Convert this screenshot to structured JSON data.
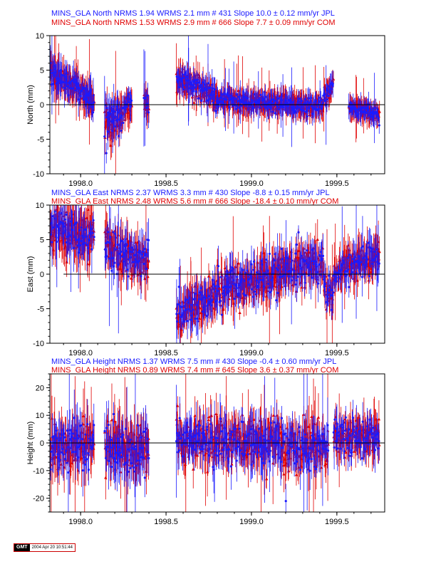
{
  "colors": {
    "jpl": "#1a1aff",
    "com": "#e00000",
    "axis": "#000000"
  },
  "chart_data": [
    {
      "type": "scatter",
      "ylabel": "North (mm)",
      "xlim": [
        1997.82,
        1999.78
      ],
      "ylim": [
        -10,
        10
      ],
      "x_ticks": [
        1998.0,
        1998.5,
        1999.0,
        1999.5
      ],
      "x_tick_labels": [
        "1998.0",
        "1998.5",
        "1999.0",
        "1999.5"
      ],
      "y_ticks": [
        -10,
        -5,
        0,
        5,
        10
      ],
      "y_tick_labels": [
        "-10",
        "-5",
        "0",
        "5",
        "10"
      ],
      "legend_lines": [
        {
          "color": "blue",
          "text": "MINS_GLA North NRMS 1.94 WRMS  2.1 mm # 431 Slope   10.0 ±  0.12 mm/yr JPL"
        },
        {
          "color": "red",
          "text": "MINS_GLA North NRMS 1.53 WRMS  2.9 mm # 666 Slope    7.7 ±  0.09 mm/yr COM"
        }
      ],
      "series": [
        {
          "legend": "JPL",
          "color": "blue",
          "marker": "circle",
          "count": 431,
          "nrms": 1.94,
          "wrms_mm": 2.1,
          "slope_mm_yr": 10.0,
          "slope_sigma_mm_yr": 0.12
        },
        {
          "legend": "COM",
          "color": "red",
          "marker": "triangle",
          "count": 666,
          "nrms": 1.53,
          "wrms_mm": 2.9,
          "slope_mm_yr": 7.7,
          "slope_sigma_mm_yr": 0.09
        }
      ],
      "shape": {
        "segments": [
          {
            "t": [
              1997.82,
              1998.08
            ],
            "v": [
              5,
              0.5
            ],
            "noise": 1.3,
            "err": 2.2
          },
          {
            "t": [
              1998.14,
              1998.24
            ],
            "v": [
              -3,
              -1
            ],
            "noise": 2.8,
            "err": 2.6
          },
          {
            "t": [
              1998.24,
              1998.3
            ],
            "v": [
              -1,
              0
            ],
            "noise": 1.4,
            "err": 2.0
          },
          {
            "t": [
              1998.37,
              1998.4
            ],
            "v": [
              1,
              0
            ],
            "noise": 1.2,
            "err": 2.0
          },
          {
            "t": [
              1998.56,
              1998.8
            ],
            "v": [
              4,
              1
            ],
            "noise": 1.2,
            "err": 1.8
          },
          {
            "t": [
              1998.8,
              1999.42
            ],
            "v": [
              0.8,
              -0.4
            ],
            "noise": 1.0,
            "err": 1.6
          },
          {
            "t": [
              1999.42,
              1999.48
            ],
            "v": [
              1,
              3
            ],
            "noise": 1.0,
            "err": 1.6
          },
          {
            "t": [
              1999.57,
              1999.75
            ],
            "v": [
              -0.3,
              -1.5
            ],
            "noise": 0.8,
            "err": 1.5
          }
        ],
        "zero_line": [
          1997.82,
          1999.78
        ]
      }
    },
    {
      "type": "scatter",
      "ylabel": "East (mm)",
      "xlim": [
        1997.82,
        1999.78
      ],
      "ylim": [
        -10,
        10
      ],
      "x_ticks": [
        1998.0,
        1998.5,
        1999.0,
        1999.5
      ],
      "x_tick_labels": [
        "1998.0",
        "1998.5",
        "1999.0",
        "1999.5"
      ],
      "y_ticks": [
        -10,
        -5,
        0,
        5,
        10
      ],
      "y_tick_labels": [
        "-10",
        "-5",
        "0",
        "5",
        "10"
      ],
      "legend_lines": [
        {
          "color": "blue",
          "text": "MINS_GLA East NRMS 2.37 WRMS  3.3 mm # 430 Slope   -8.8 ±  0.15 mm/yr JPL"
        },
        {
          "color": "red",
          "text": "MINS_GLA East NRMS 2.48 WRMS  5.6 mm # 666 Slope  -18.4 ±  0.10 mm/yr COM"
        }
      ],
      "series": [
        {
          "legend": "JPL",
          "color": "blue",
          "marker": "circle",
          "count": 430,
          "nrms": 2.37,
          "wrms_mm": 3.3,
          "slope_mm_yr": -8.8,
          "slope_sigma_mm_yr": 0.15
        },
        {
          "legend": "COM",
          "color": "red",
          "marker": "triangle",
          "count": 666,
          "nrms": 2.48,
          "wrms_mm": 5.6,
          "slope_mm_yr": -18.4,
          "slope_sigma_mm_yr": 0.1
        }
      ],
      "shape": {
        "segments": [
          {
            "t": [
              1997.82,
              1998.08
            ],
            "v": [
              7,
              5
            ],
            "noise": 2.5,
            "err": 3.0
          },
          {
            "t": [
              1998.14,
              1998.4
            ],
            "v": [
              4,
              2
            ],
            "noise": 2.2,
            "err": 2.6
          },
          {
            "t": [
              1998.56,
              1998.8
            ],
            "v": [
              -6,
              -3
            ],
            "noise": 2.0,
            "err": 2.5
          },
          {
            "t": [
              1998.8,
              1999.42
            ],
            "v": [
              -2,
              2
            ],
            "noise": 2.2,
            "err": 2.5
          },
          {
            "t": [
              1999.42,
              1999.48
            ],
            "v": [
              -2,
              -3.5
            ],
            "noise": 1.8,
            "err": 2.4
          },
          {
            "t": [
              1999.48,
              1999.57
            ],
            "v": [
              0,
              1
            ],
            "noise": 1.5,
            "err": 2.2
          },
          {
            "t": [
              1999.57,
              1999.75
            ],
            "v": [
              1.5,
              2.5
            ],
            "noise": 1.8,
            "err": 2.4
          }
        ],
        "zero_line": [
          1997.9,
          1999.78
        ]
      }
    },
    {
      "type": "scatter",
      "ylabel": "Height (mm)",
      "xlim": [
        1997.82,
        1999.78
      ],
      "ylim": [
        -25,
        25
      ],
      "x_ticks": [
        1998.0,
        1998.5,
        1999.0,
        1999.5
      ],
      "x_tick_labels": [
        "1998.0",
        "1998.5",
        "1999.0",
        "1999.5"
      ],
      "y_ticks": [
        -20,
        -10,
        0,
        10,
        20
      ],
      "y_tick_labels": [
        "-20",
        "-10",
        "0",
        "10",
        "20"
      ],
      "legend_lines": [
        {
          "color": "blue",
          "text": "MINS_GLA Height NRMS 1.37 WRMS  7.5 mm # 430 Slope   -0.4 ±  0.60 mm/yr JPL"
        },
        {
          "color": "red",
          "text": "MINS_GLA Height NRMS 0.89 WRMS  7.4 mm # 645 Slope    3.6 ±  0.37 mm/yr COM"
        }
      ],
      "series": [
        {
          "legend": "JPL",
          "color": "blue",
          "marker": "circle",
          "count": 430,
          "nrms": 1.37,
          "wrms_mm": 7.5,
          "slope_mm_yr": -0.4,
          "slope_sigma_mm_yr": 0.6
        },
        {
          "legend": "COM",
          "color": "red",
          "marker": "triangle",
          "count": 645,
          "nrms": 0.89,
          "wrms_mm": 7.4,
          "slope_mm_yr": 3.6,
          "slope_sigma_mm_yr": 0.37
        }
      ],
      "shape": {
        "segments": [
          {
            "t": [
              1997.82,
              1998.08
            ],
            "v": [
              -3,
              0
            ],
            "noise": 7.0,
            "err": 8.0
          },
          {
            "t": [
              1998.14,
              1998.4
            ],
            "v": [
              0,
              -3
            ],
            "noise": 7.5,
            "err": 8.5
          },
          {
            "t": [
              1998.56,
              1999.45
            ],
            "v": [
              2,
              -2
            ],
            "noise": 7.0,
            "err": 7.0
          },
          {
            "t": [
              1999.48,
              1999.75
            ],
            "v": [
              2,
              3
            ],
            "noise": 5.5,
            "err": 6.5
          }
        ],
        "zero_line": [
          1997.82,
          1999.78
        ]
      }
    }
  ],
  "footer": {
    "logo": "GMT",
    "timestamp": "2004 Apr 20 10:51:44"
  }
}
